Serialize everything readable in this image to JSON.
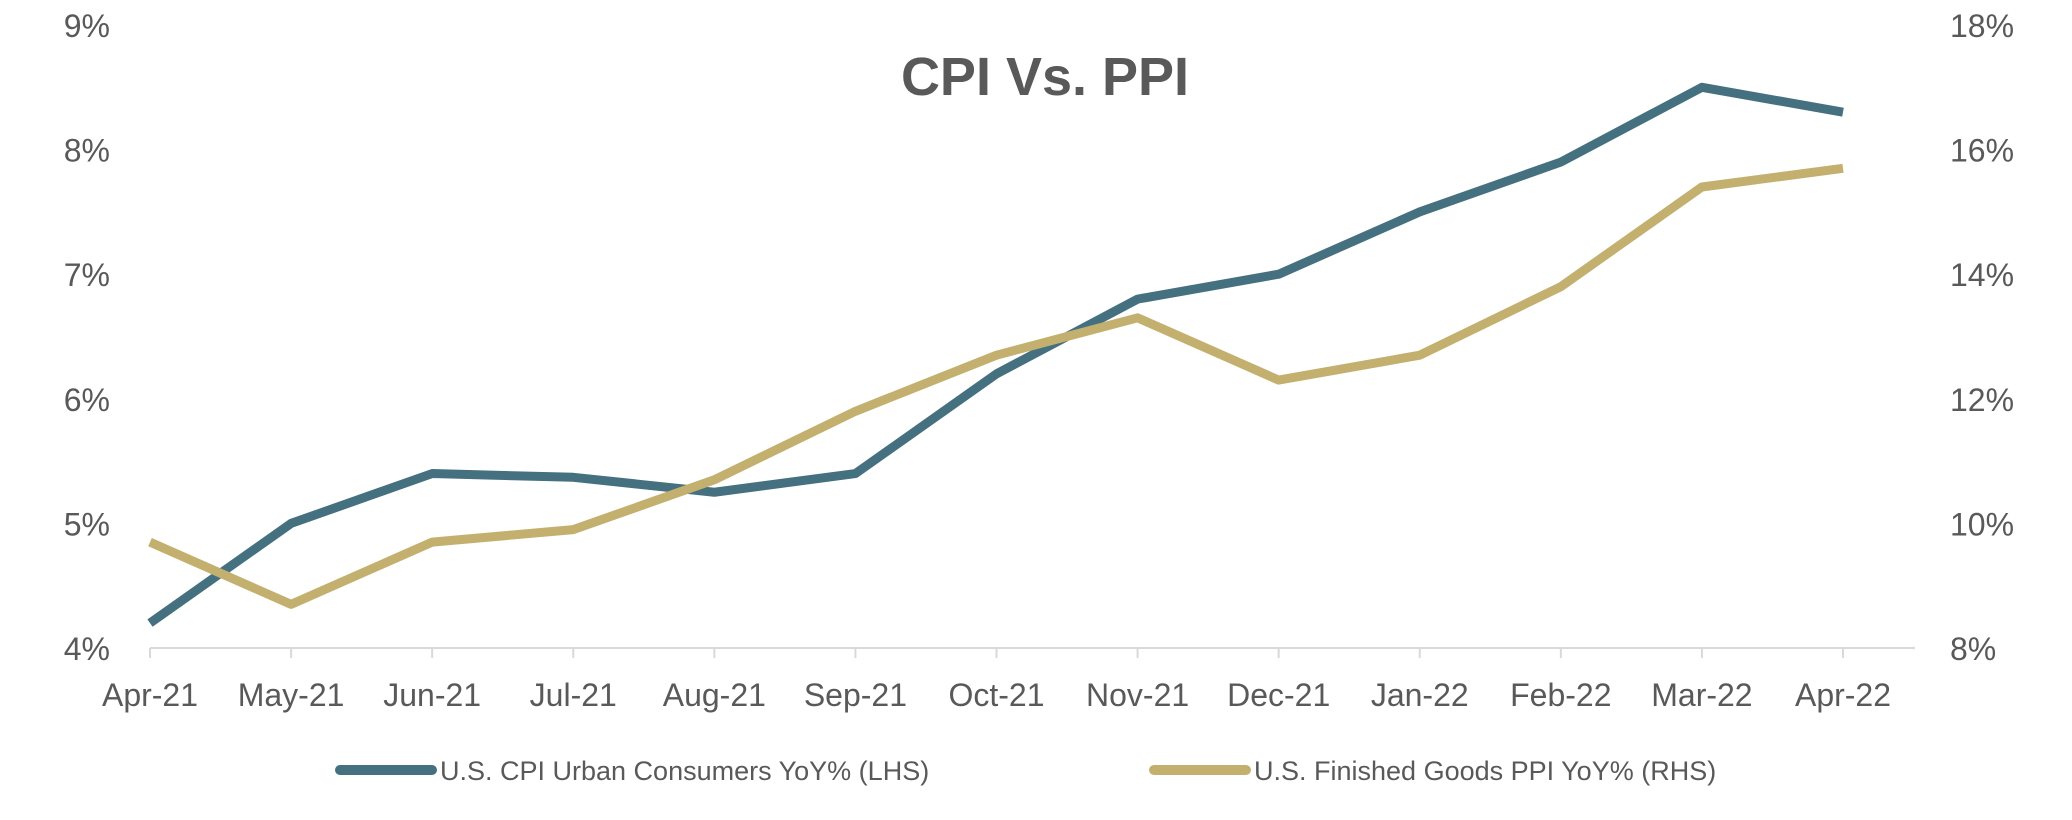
{
  "chart_data": {
    "type": "line",
    "title": "CPI Vs. PPI",
    "categories": [
      "Apr-21",
      "May-21",
      "Jun-21",
      "Jul-21",
      "Aug-21",
      "Sep-21",
      "Oct-21",
      "Nov-21",
      "Dec-21",
      "Jan-22",
      "Feb-22",
      "Mar-22",
      "Apr-22"
    ],
    "y_left": {
      "ylim": [
        4,
        9
      ],
      "ticks": [
        4,
        5,
        6,
        7,
        8,
        9
      ],
      "tick_labels": [
        "4%",
        "5%",
        "6%",
        "7%",
        "8%",
        "9%"
      ]
    },
    "y_right": {
      "ylim": [
        8,
        18
      ],
      "ticks": [
        8,
        10,
        12,
        14,
        16,
        18
      ],
      "tick_labels": [
        "8%",
        "10%",
        "12%",
        "14%",
        "16%",
        "18%"
      ]
    },
    "grid": false,
    "legend_position": "bottom",
    "series": [
      {
        "name": "U.S. CPI Urban Consumers YoY% (LHS)",
        "axis": "left",
        "color": "#44707f",
        "values": [
          4.2,
          5.0,
          5.4,
          5.37,
          5.25,
          5.4,
          6.2,
          6.8,
          7.0,
          7.5,
          7.9,
          8.5,
          8.3
        ]
      },
      {
        "name": "U.S. Finished Goods PPI YoY% (RHS)",
        "axis": "right",
        "color": "#c4b06e",
        "values": [
          9.7,
          8.7,
          9.7,
          9.9,
          10.7,
          11.8,
          12.7,
          13.3,
          12.3,
          12.7,
          13.8,
          15.4,
          15.7
        ]
      }
    ]
  }
}
